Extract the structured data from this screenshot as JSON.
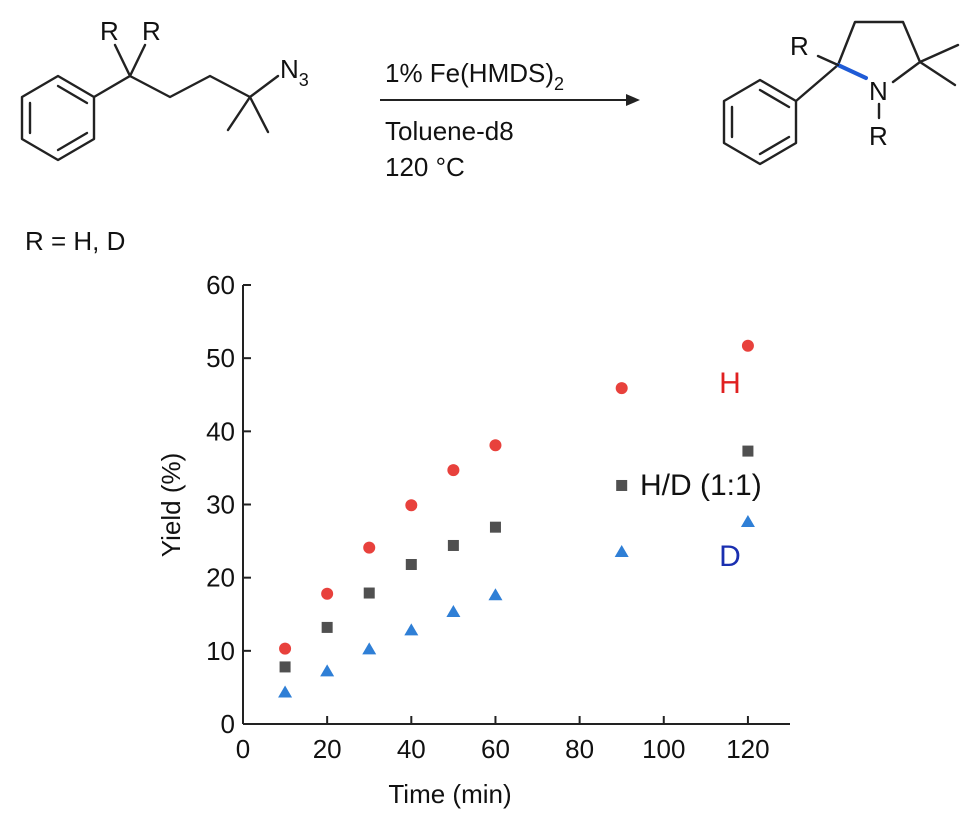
{
  "scheme": {
    "r_label": "R",
    "azide": "N",
    "azide_sub": "3",
    "reagent": "1% Fe(HMDS)",
    "reagent_sub": "2",
    "solvent": "Toluene-d8",
    "temperature": "120 °C",
    "n_label": "N",
    "definition": "R = H, D"
  },
  "chart_data": {
    "type": "scatter",
    "x_label": "Time (min)",
    "y_label": "Yield (%)",
    "x": [
      10,
      20,
      30,
      40,
      50,
      60,
      90,
      120
    ],
    "series": [
      {
        "name": "H",
        "color": "#e8413c",
        "label_color": "#e02020",
        "marker": "circle",
        "values": [
          10.3,
          17.8,
          24.1,
          29.9,
          34.7,
          38.1,
          45.9,
          51.7
        ]
      },
      {
        "name": "H/D (1:1)",
        "color": "#505050",
        "label_color": "#111111",
        "marker": "square",
        "values": [
          7.8,
          13.2,
          17.9,
          21.8,
          24.4,
          26.9,
          32.6,
          37.3
        ]
      },
      {
        "name": "D",
        "color": "#2f7fd6",
        "label_color": "#1a2fb0",
        "marker": "triangle",
        "values": [
          4.3,
          7.2,
          10.2,
          12.8,
          15.3,
          17.6,
          23.5,
          27.6
        ]
      }
    ],
    "xlim": [
      0,
      130
    ],
    "xticks": [
      0,
      20,
      40,
      60,
      80,
      100,
      120
    ],
    "ylim": [
      0,
      60
    ],
    "yticks": [
      0,
      10,
      20,
      30,
      40,
      50,
      60
    ],
    "grid": false
  }
}
